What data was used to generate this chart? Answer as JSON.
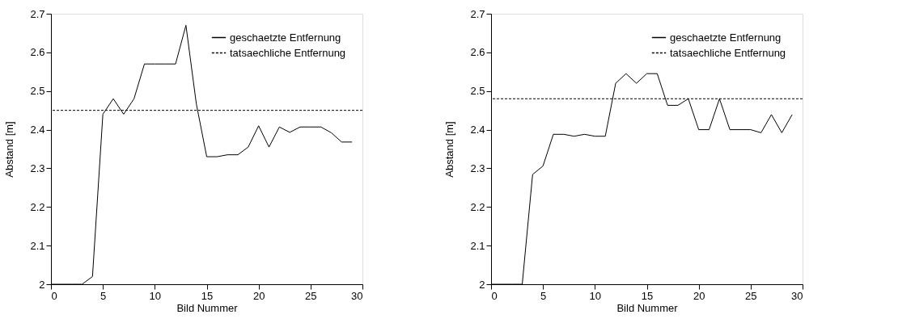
{
  "chart_data": [
    {
      "type": "line",
      "xlabel": "Bild Nummer",
      "ylabel": "Abstand [m]",
      "xlim": [
        0,
        30
      ],
      "ylim": [
        2,
        2.7
      ],
      "xticks": [
        0,
        5,
        10,
        15,
        20,
        25,
        30
      ],
      "yticks": [
        2,
        2.1,
        2.2,
        2.3,
        2.4,
        2.5,
        2.6,
        2.7
      ],
      "grid": false,
      "legend": "top right",
      "marker": "none",
      "line_style": "solid",
      "x": [
        0,
        1,
        2,
        3,
        4,
        5,
        6,
        7,
        8,
        9,
        10,
        11,
        12,
        13,
        14,
        15,
        16,
        17,
        18,
        19,
        20,
        21,
        22,
        23,
        24,
        25,
        26,
        27,
        28,
        29
      ],
      "series": [
        {
          "name": "geschaetzte Entfernung",
          "color": "#000000",
          "values": [
            2.0,
            2.0,
            2.0,
            2.0,
            2.02,
            2.44,
            2.48,
            2.44,
            2.48,
            2.57,
            2.57,
            2.57,
            2.57,
            2.67,
            2.467,
            2.33,
            2.33,
            2.335,
            2.335,
            2.355,
            2.41,
            2.355,
            2.407,
            2.393,
            2.407,
            2.407,
            2.407,
            2.392,
            2.368,
            2.368
          ]
        }
      ],
      "ref_lines": [
        {
          "axis": "y",
          "value": 2.45,
          "label": "tatsaechliche Entfernung",
          "color": "#000000",
          "line_style": "dashed"
        }
      ]
    },
    {
      "type": "line",
      "xlabel": "Bild Nummer",
      "ylabel": "Abstand [m]",
      "xlim": [
        0,
        30
      ],
      "ylim": [
        2,
        2.7
      ],
      "xticks": [
        0,
        5,
        10,
        15,
        20,
        25,
        30
      ],
      "yticks": [
        2,
        2.1,
        2.2,
        2.3,
        2.4,
        2.5,
        2.6,
        2.7
      ],
      "grid": false,
      "legend": "top right",
      "marker": "none",
      "line_style": "solid",
      "x": [
        0,
        1,
        2,
        3,
        4,
        5,
        6,
        7,
        8,
        9,
        10,
        11,
        12,
        13,
        14,
        15,
        16,
        17,
        18,
        19,
        20,
        21,
        22,
        23,
        24,
        25,
        26,
        27,
        28,
        29
      ],
      "series": [
        {
          "name": "geschaetzte Entfernung",
          "color": "#000000",
          "values": [
            2.0,
            2.0,
            2.0,
            2.0,
            2.284,
            2.306,
            2.388,
            2.388,
            2.383,
            2.388,
            2.383,
            2.383,
            2.52,
            2.545,
            2.52,
            2.545,
            2.545,
            2.463,
            2.463,
            2.48,
            2.4,
            2.4,
            2.48,
            2.4,
            2.4,
            2.4,
            2.392,
            2.439,
            2.392,
            2.439
          ]
        }
      ],
      "ref_lines": [
        {
          "axis": "y",
          "value": 2.48,
          "label": "tatsaechliche Entfernung",
          "color": "#000000",
          "line_style": "dashed"
        }
      ]
    }
  ]
}
